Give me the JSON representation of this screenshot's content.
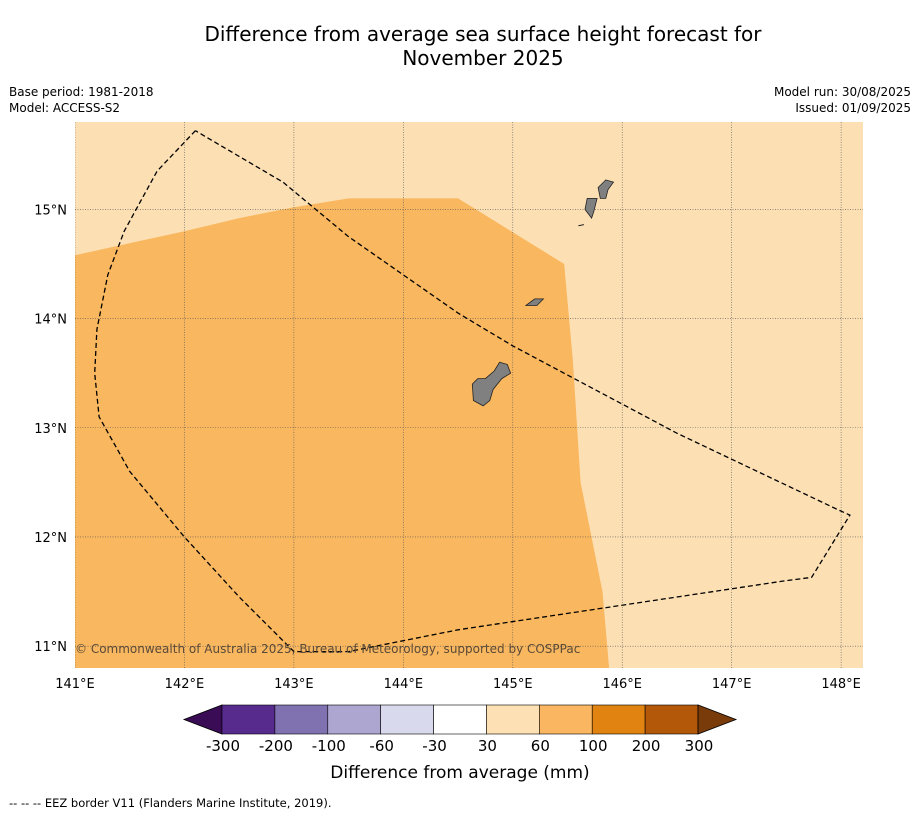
{
  "title_line1": "Difference from average sea surface height forecast for",
  "title_line2": "November 2025",
  "meta_left": {
    "base_period": "Base period: 1981-2018",
    "model": "Model: ACCESS-S2"
  },
  "meta_right": {
    "model_run": "Model run: 30/08/2025",
    "issued": "Issued: 01/09/2025"
  },
  "map": {
    "lon_ticks": [
      {
        "value": 141,
        "label": "141°E"
      },
      {
        "value": 142,
        "label": "142°E"
      },
      {
        "value": 143,
        "label": "143°E"
      },
      {
        "value": 144,
        "label": "144°E"
      },
      {
        "value": 145,
        "label": "145°E"
      },
      {
        "value": 146,
        "label": "146°E"
      },
      {
        "value": 147,
        "label": "147°E"
      },
      {
        "value": 148,
        "label": "148°E"
      }
    ],
    "lat_ticks": [
      {
        "value": 11,
        "label": "11°N"
      },
      {
        "value": 12,
        "label": "12°N"
      },
      {
        "value": 13,
        "label": "13°N"
      },
      {
        "value": 14,
        "label": "14°N"
      },
      {
        "value": 15,
        "label": "15°N"
      }
    ],
    "extent": {
      "lon": [
        141,
        148.2
      ],
      "lat": [
        10.8,
        15.8
      ]
    },
    "copyright": "© Commonwealth of Australia 2025, Bureau of Meteorology, supported by COSPPac",
    "regions": [
      {
        "name": "30 to 60",
        "color": "#fce0b4",
        "points": [
          [
            141,
            10.8
          ],
          [
            148.2,
            10.8
          ],
          [
            148.2,
            15.8
          ],
          [
            141,
            15.8
          ]
        ]
      },
      {
        "name": "60 to 100",
        "color": "#f9b75f",
        "points": [
          [
            141,
            10.8
          ],
          [
            145.88,
            10.8
          ],
          [
            145.82,
            11.5
          ],
          [
            145.62,
            12.5
          ],
          [
            145.55,
            13.6
          ],
          [
            145.47,
            14.5
          ],
          [
            144.5,
            15.1
          ],
          [
            143.5,
            15.1
          ],
          [
            143,
            15.02
          ],
          [
            142.5,
            14.92
          ],
          [
            142,
            14.8
          ],
          [
            141,
            14.58
          ]
        ]
      }
    ],
    "eez_border": [
      [
        142.1,
        15.72
      ],
      [
        141.75,
        15.35
      ],
      [
        141.45,
        14.8
      ],
      [
        141.3,
        14.4
      ],
      [
        141.2,
        13.9
      ],
      [
        141.18,
        13.5
      ],
      [
        141.22,
        13.1
      ],
      [
        141.5,
        12.6
      ],
      [
        142,
        12
      ],
      [
        142.5,
        11.45
      ],
      [
        143,
        10.95
      ],
      [
        143.5,
        10.95
      ],
      [
        144.5,
        11.15
      ],
      [
        145.5,
        11.3
      ],
      [
        146.5,
        11.45
      ],
      [
        147.5,
        11.6
      ],
      [
        147.73,
        11.63
      ],
      [
        148.08,
        12.2
      ],
      [
        147.95,
        12.26
      ],
      [
        146.5,
        12.95
      ],
      [
        145,
        13.75
      ],
      [
        144.5,
        14.05
      ],
      [
        144,
        14.4
      ],
      [
        143.5,
        14.75
      ],
      [
        142.9,
        15.25
      ],
      [
        142.1,
        15.72
      ]
    ],
    "islands": [
      [
        [
          144.73,
          13.2
        ],
        [
          144.64,
          13.25
        ],
        [
          144.63,
          13.4
        ],
        [
          144.68,
          13.45
        ],
        [
          144.75,
          13.45
        ],
        [
          144.83,
          13.52
        ],
        [
          144.88,
          13.6
        ],
        [
          144.95,
          13.58
        ],
        [
          144.98,
          13.5
        ],
        [
          144.9,
          13.45
        ],
        [
          144.82,
          13.35
        ],
        [
          144.79,
          13.25
        ],
        [
          144.73,
          13.2
        ]
      ],
      [
        [
          145.12,
          14.12
        ],
        [
          145.2,
          14.18
        ],
        [
          145.28,
          14.18
        ],
        [
          145.22,
          14.12
        ],
        [
          145.12,
          14.12
        ]
      ],
      [
        [
          145.72,
          14.92
        ],
        [
          145.66,
          15.0
        ],
        [
          145.68,
          15.1
        ],
        [
          145.77,
          15.1
        ],
        [
          145.74,
          14.98
        ],
        [
          145.72,
          14.92
        ]
      ],
      [
        [
          145.8,
          15.1
        ],
        [
          145.78,
          15.2
        ],
        [
          145.85,
          15.27
        ],
        [
          145.92,
          15.25
        ],
        [
          145.87,
          15.18
        ],
        [
          145.85,
          15.1
        ],
        [
          145.8,
          15.1
        ]
      ],
      [
        [
          145.6,
          14.85
        ],
        [
          145.65,
          14.86
        ]
      ]
    ]
  },
  "colorbar": {
    "colors": [
      "#3a0c55",
      "#572a8e",
      "#8072b0",
      "#aca6d0",
      "#d8d9ec",
      "#ffffff",
      "#fde0b3",
      "#fab660",
      "#e08311",
      "#b25808",
      "#7a3b0b"
    ],
    "tick_labels": [
      "-300",
      "-200",
      "-100",
      "-60",
      "-30",
      "30",
      "60",
      "100",
      "200",
      "300"
    ],
    "label": "Difference from average (mm)"
  },
  "footer": "--  --  -- EEZ border V11 (Flanders Marine Institute, 2019)."
}
